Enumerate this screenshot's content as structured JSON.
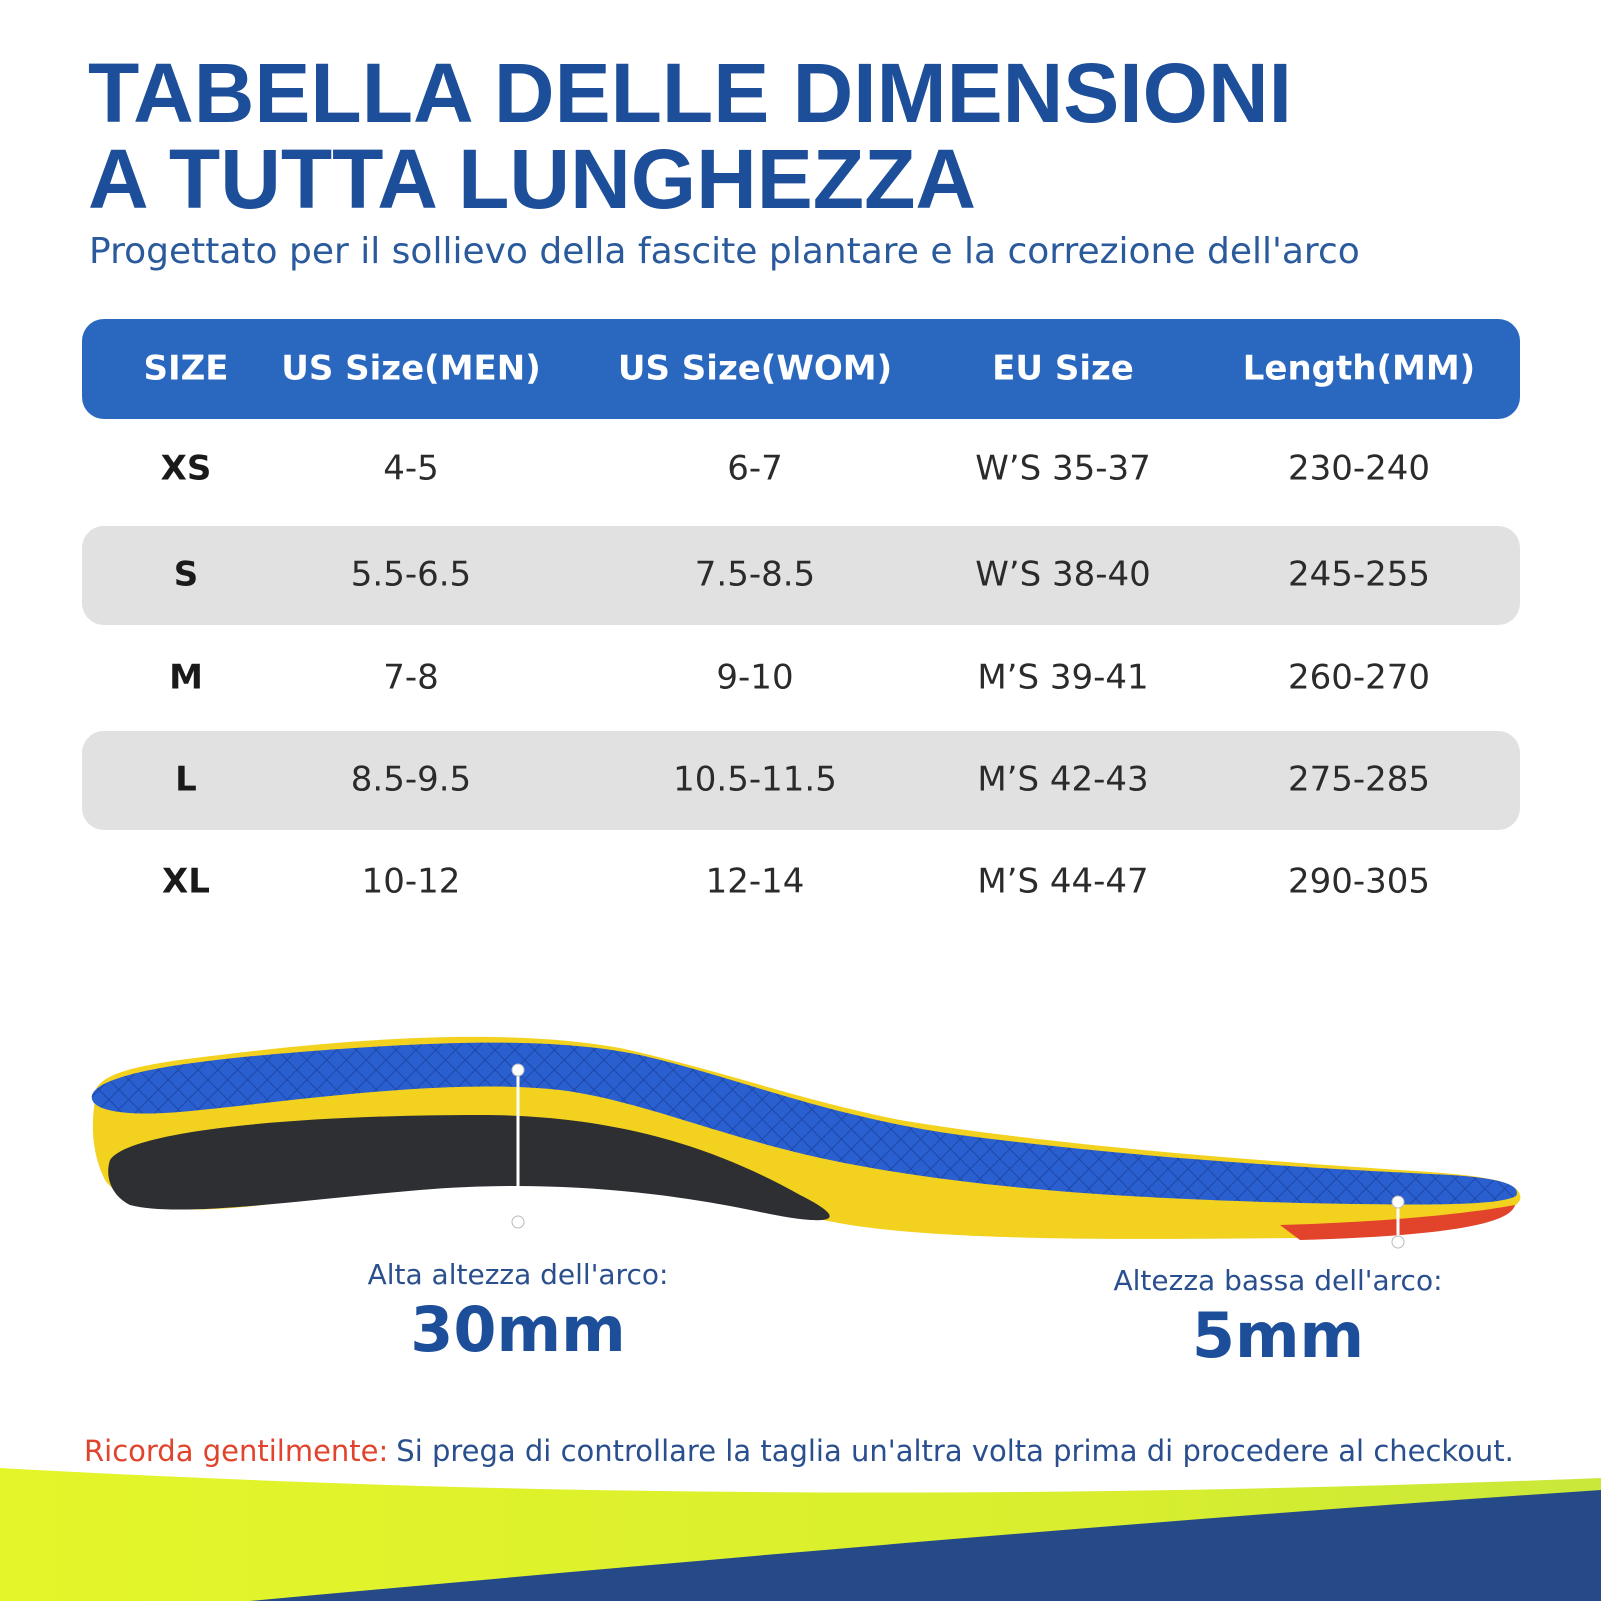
{
  "header": {
    "title_lines": [
      "TABELLA DELLE DIMENSIONI",
      "A TUTTA LUNGHEZZA"
    ],
    "subtitle": "Progettato per il sollievo della fascite plantare e la correzione dell'arco"
  },
  "table": {
    "columns": [
      "SIZE",
      "US Size(MEN)",
      "US Size(WOM)",
      "EU Size",
      "Length(MM)"
    ],
    "rows": [
      [
        "XS",
        "4-5",
        "6-7",
        "W’S 35-37",
        "230-240"
      ],
      [
        "S",
        "5.5-6.5",
        "7.5-8.5",
        "W’S 38-40",
        "245-255"
      ],
      [
        "M",
        "7-8",
        "9-10",
        "M’S 39-41",
        "260-270"
      ],
      [
        "L",
        "8.5-9.5",
        "10.5-11.5",
        "M’S 42-43",
        "275-285"
      ],
      [
        "XL",
        "10-12",
        "12-14",
        "M’S 44-47",
        "290-305"
      ]
    ]
  },
  "arch": {
    "high": {
      "label": "Alta altezza dell'arco:",
      "value": "30mm"
    },
    "low": {
      "label": "Altezza bassa dell'arco:",
      "value": "5mm"
    }
  },
  "note": {
    "label": "Ricorda gentilmente:",
    "text": "Si prega di controllare la taglia un'altra volta prima di procedere al checkout."
  }
}
